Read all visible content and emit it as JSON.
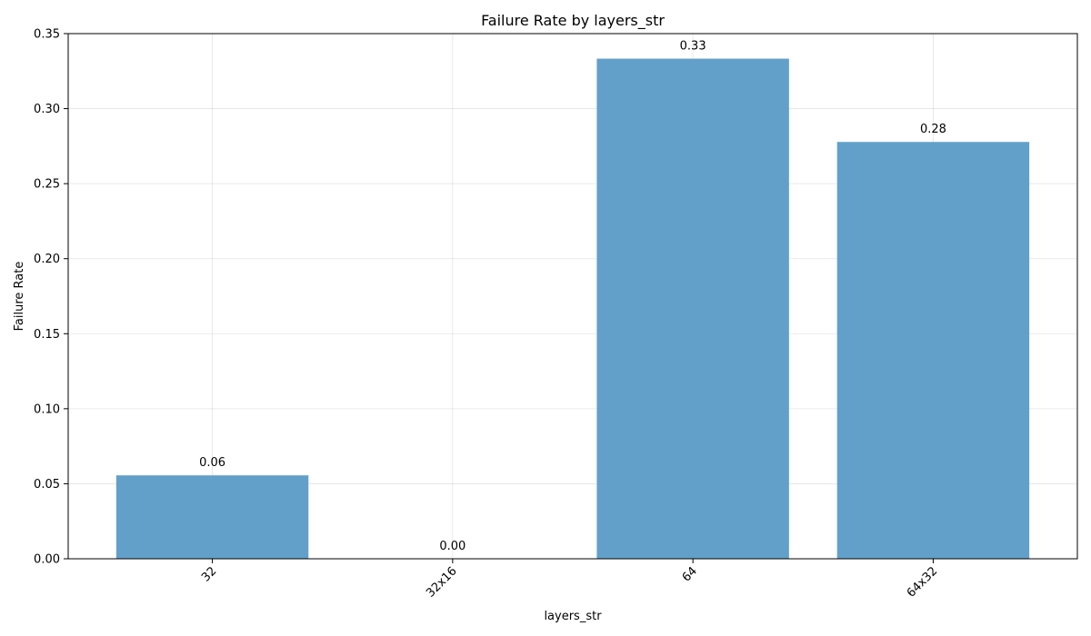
{
  "chart_data": {
    "type": "bar",
    "title": "Failure Rate by layers_str",
    "xlabel": "layers_str",
    "ylabel": "Failure Rate",
    "categories": [
      "32",
      "32x16",
      "64",
      "64x32"
    ],
    "values": [
      0.0556,
      0.0,
      0.3333,
      0.2778
    ],
    "data_labels": [
      "0.06",
      "0.00",
      "0.33",
      "0.28"
    ],
    "ylim": [
      0,
      0.35
    ],
    "yticks": [
      0.0,
      0.05,
      0.1,
      0.15,
      0.2,
      0.25,
      0.3,
      0.35
    ],
    "ytick_labels": [
      "0.00",
      "0.05",
      "0.10",
      "0.15",
      "0.20",
      "0.25",
      "0.30",
      "0.35"
    ],
    "xtick_rotation_deg": 45,
    "grid": true,
    "bar_color": "#62a0ca"
  }
}
